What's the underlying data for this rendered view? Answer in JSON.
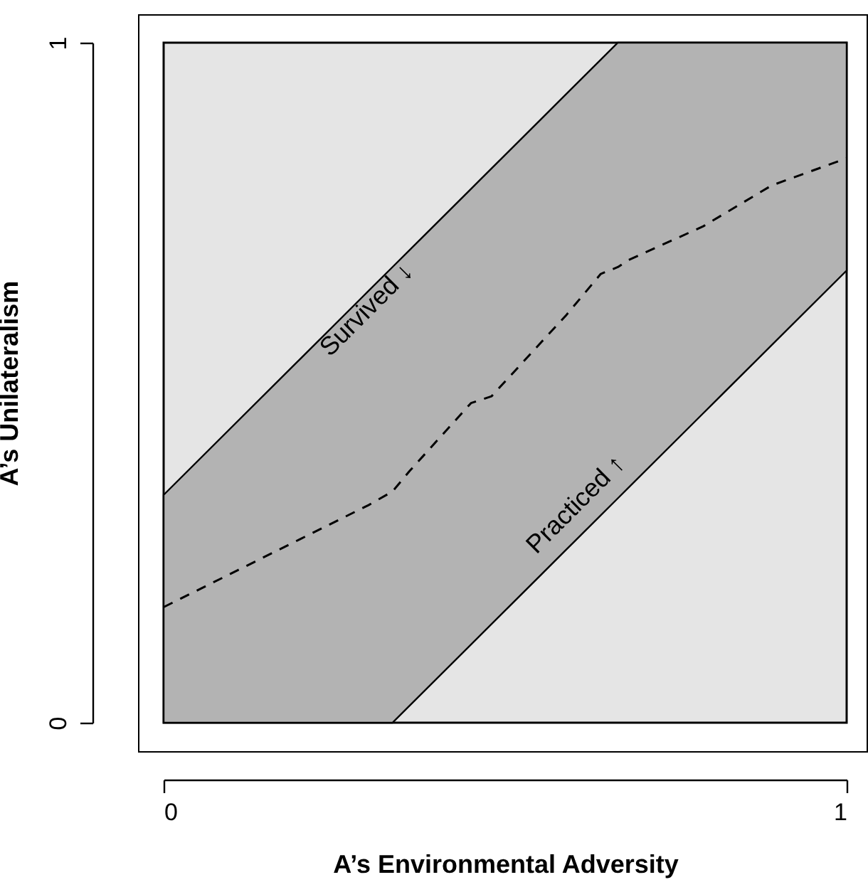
{
  "chart_data": {
    "type": "line",
    "xlabel": "A’s Environmental Adversity",
    "ylabel": "A’s Unilateralism",
    "xlim": [
      0,
      1
    ],
    "ylim": [
      0,
      1
    ],
    "xticks": [
      0,
      1
    ],
    "yticks": [
      0,
      1
    ],
    "grid": false,
    "series": [
      {
        "color": "#000000",
        "line_style": "dashed",
        "x": [
          0,
          0.2,
          0.3,
          0.335,
          0.36,
          0.45,
          0.48,
          0.59,
          0.64,
          0.665,
          0.68,
          0.79,
          0.89,
          1
        ],
        "values": [
          0.17,
          0.27,
          0.32,
          0.34,
          0.37,
          0.47,
          0.48,
          0.6,
          0.66,
          0.67,
          0.68,
          0.73,
          0.79,
          0.83
        ],
        "lower": [
          0,
          0,
          0,
          0,
          0.025,
          0.115,
          0.145,
          0.255,
          0.305,
          0.33,
          0.345,
          0.455,
          0.555,
          0.665
        ],
        "upper": [
          0.335,
          0.535,
          0.635,
          0.67,
          0.695,
          0.785,
          0.815,
          0.925,
          0.975,
          1,
          1,
          1,
          1,
          1
        ]
      }
    ],
    "annotations": [
      "Survived ↓",
      "Practiced ↑"
    ]
  }
}
